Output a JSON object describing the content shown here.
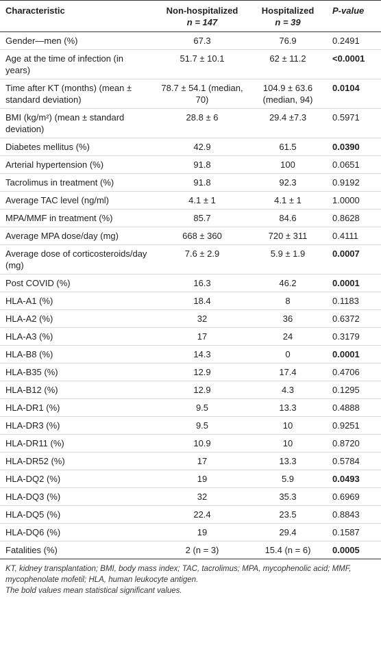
{
  "table": {
    "header": {
      "characteristic": "Characteristic",
      "non_hospitalized": {
        "label": "Non-hospitalized",
        "n": "n = 147"
      },
      "hospitalized": {
        "label": "Hospitalized",
        "n": "n = 39"
      },
      "p_value": "P-value"
    },
    "rows": [
      {
        "characteristic": "Gender—men (%)",
        "non_hospitalized": "67.3",
        "hospitalized": "76.9",
        "p_value": "0.2491",
        "bold": false
      },
      {
        "characteristic": "Age at the time of infection (in years)",
        "non_hospitalized": "51.7 ± 10.1",
        "hospitalized": "62 ± 11.2",
        "p_value": "<0.0001",
        "bold": true
      },
      {
        "characteristic": "Time after KT (months) (mean ± standard deviation)",
        "non_hospitalized": "78.7 ± 54.1 (median, 70)",
        "hospitalized": "104.9 ± 63.6 (median, 94)",
        "p_value": "0.0104",
        "bold": true
      },
      {
        "characteristic": "BMI (kg/m²) (mean ± standard deviation)",
        "non_hospitalized": "28.8 ± 6",
        "hospitalized": "29.4 ±7.3",
        "p_value": "0.5971",
        "bold": false
      },
      {
        "characteristic": "Diabetes mellitus (%)",
        "non_hospitalized": "42.9",
        "hospitalized": "61.5",
        "p_value": "0.0390",
        "bold": true
      },
      {
        "characteristic": "Arterial hypertension (%)",
        "non_hospitalized": "91.8",
        "hospitalized": "100",
        "p_value": "0.0651",
        "bold": false
      },
      {
        "characteristic": "Tacrolimus in treatment (%)",
        "non_hospitalized": "91.8",
        "hospitalized": "92.3",
        "p_value": "0.9192",
        "bold": false
      },
      {
        "characteristic": "Average TAC level (ng/ml)",
        "non_hospitalized": "4.1 ± 1",
        "hospitalized": "4.1 ± 1",
        "p_value": "1.0000",
        "bold": false
      },
      {
        "characteristic": "MPA/MMF in treatment (%)",
        "non_hospitalized": "85.7",
        "hospitalized": "84.6",
        "p_value": "0.8628",
        "bold": false
      },
      {
        "characteristic": "Average MPA dose/day (mg)",
        "non_hospitalized": "668 ± 360",
        "hospitalized": "720 ± 311",
        "p_value": "0.4111",
        "bold": false
      },
      {
        "characteristic": "Average dose of corticosteroids/day (mg)",
        "non_hospitalized": "7.6 ± 2.9",
        "hospitalized": "5.9 ± 1.9",
        "p_value": "0.0007",
        "bold": true
      },
      {
        "characteristic": "Post COVID (%)",
        "non_hospitalized": "16.3",
        "hospitalized": "46.2",
        "p_value": "0.0001",
        "bold": true
      },
      {
        "characteristic": "HLA-A1 (%)",
        "non_hospitalized": "18.4",
        "hospitalized": "8",
        "p_value": "0.1183",
        "bold": false
      },
      {
        "characteristic": "HLA-A2 (%)",
        "non_hospitalized": "32",
        "hospitalized": "36",
        "p_value": "0.6372",
        "bold": false
      },
      {
        "characteristic": "HLA-A3 (%)",
        "non_hospitalized": "17",
        "hospitalized": "24",
        "p_value": "0.3179",
        "bold": false
      },
      {
        "characteristic": "HLA-B8 (%)",
        "non_hospitalized": "14.3",
        "hospitalized": "0",
        "p_value": "0.0001",
        "bold": true
      },
      {
        "characteristic": "HLA-B35 (%)",
        "non_hospitalized": "12.9",
        "hospitalized": "17.4",
        "p_value": "0.4706",
        "bold": false
      },
      {
        "characteristic": "HLA-B12 (%)",
        "non_hospitalized": "12.9",
        "hospitalized": "4.3",
        "p_value": "0.1295",
        "bold": false
      },
      {
        "characteristic": "HLA-DR1 (%)",
        "non_hospitalized": "9.5",
        "hospitalized": "13.3",
        "p_value": "0.4888",
        "bold": false
      },
      {
        "characteristic": "HLA-DR3 (%)",
        "non_hospitalized": "9.5",
        "hospitalized": "10",
        "p_value": "0.9251",
        "bold": false
      },
      {
        "characteristic": "HLA-DR11 (%)",
        "non_hospitalized": "10.9",
        "hospitalized": "10",
        "p_value": "0.8720",
        "bold": false
      },
      {
        "characteristic": "HLA-DR52 (%)",
        "non_hospitalized": "17",
        "hospitalized": "13.3",
        "p_value": "0.5784",
        "bold": false
      },
      {
        "characteristic": "HLA-DQ2 (%)",
        "non_hospitalized": "19",
        "hospitalized": "5.9",
        "p_value": "0.0493",
        "bold": true
      },
      {
        "characteristic": "HLA-DQ3 (%)",
        "non_hospitalized": "32",
        "hospitalized": "35.3",
        "p_value": "0.6969",
        "bold": false
      },
      {
        "characteristic": "HLA-DQ5 (%)",
        "non_hospitalized": "22.4",
        "hospitalized": "23.5",
        "p_value": "0.8843",
        "bold": false
      },
      {
        "characteristic": "HLA-DQ6 (%)",
        "non_hospitalized": "19",
        "hospitalized": "29.4",
        "p_value": "0.1587",
        "bold": false
      },
      {
        "characteristic": "Fatalities (%)",
        "non_hospitalized": "2 (n = 3)",
        "hospitalized": "15.4 (n = 6)",
        "p_value": "0.0005",
        "bold": true
      }
    ],
    "footnotes": [
      "KT, kidney transplantation; BMI, body mass index; TAC, tacrolimus; MPA, mycophenolic acid; MMF, mycophenolate mofetil; HLA, human leukocyte antigen.",
      "The bold values mean statistical significant values."
    ]
  }
}
